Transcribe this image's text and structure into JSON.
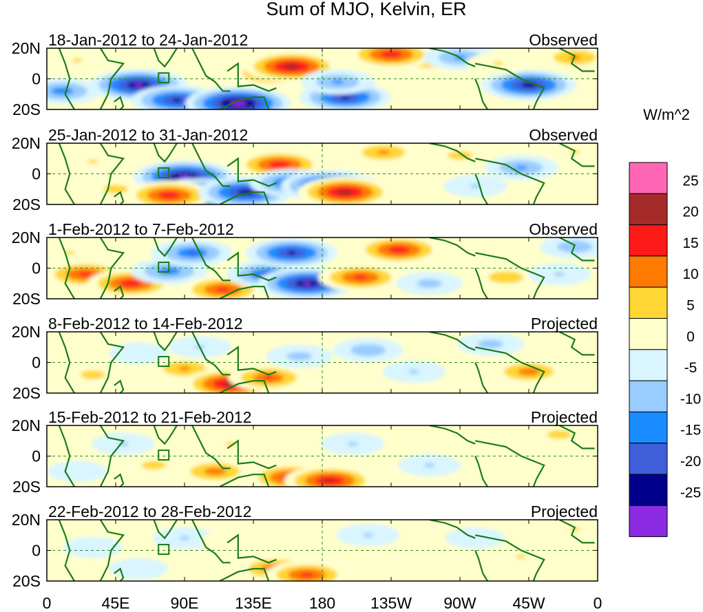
{
  "chart_data": {
    "type": "heatmap",
    "title": "Sum of MJO, Kelvin, ER",
    "colorbar": {
      "units": "W/m^2",
      "tick_labels": [
        "25",
        "20",
        "15",
        "10",
        "5",
        "0",
        "-5",
        "-10",
        "-15",
        "-20",
        "-25"
      ],
      "colors": [
        "#ff66b3",
        "#a52a2a",
        "#ff1a1a",
        "#ff7a00",
        "#ffd633",
        "#ffffcc",
        "#d9f5ff",
        "#99ccff",
        "#1a8cff",
        "#3f5fd9",
        "#00008b",
        "#8a2be2"
      ]
    },
    "x_ticks": [
      "0",
      "45E",
      "90E",
      "135E",
      "180",
      "135W",
      "90W",
      "45W",
      "0"
    ],
    "y_ticks": [
      "20N",
      "0",
      "20S"
    ],
    "xlim": [
      0,
      360
    ],
    "ylim": [
      -20,
      20
    ],
    "panels": [
      {
        "period": "18-Jan-2012 to 24-Jan-2012",
        "status": "Observed",
        "blobs": [
          [
            10,
            -8,
            -14
          ],
          [
            60,
            -4,
            -26
          ],
          [
            85,
            -14,
            -22
          ],
          [
            125,
            -16,
            -30
          ],
          [
            148,
            4,
            18
          ],
          [
            160,
            8,
            24
          ],
          [
            195,
            -12,
            -22
          ],
          [
            190,
            -2,
            -12
          ],
          [
            250,
            12,
            12
          ],
          [
            225,
            16,
            20
          ],
          [
            270,
            14,
            -12
          ],
          [
            315,
            -4,
            -24
          ],
          [
            345,
            14,
            12
          ],
          [
            20,
            12,
            6
          ],
          [
            295,
            10,
            6
          ]
        ]
      },
      {
        "period": "25-Jan-2012 to 31-Jan-2012",
        "status": "Observed",
        "blobs": [
          [
            30,
            8,
            6
          ],
          [
            45,
            -10,
            8
          ],
          [
            90,
            -2,
            -28
          ],
          [
            100,
            -14,
            -30
          ],
          [
            80,
            -14,
            20
          ],
          [
            130,
            -12,
            -24
          ],
          [
            152,
            6,
            20
          ],
          [
            160,
            -6,
            -18
          ],
          [
            185,
            -8,
            -26
          ],
          [
            195,
            -12,
            24
          ],
          [
            220,
            14,
            12
          ],
          [
            270,
            12,
            8
          ],
          [
            280,
            -8,
            -6
          ],
          [
            310,
            4,
            -12
          ],
          [
            345,
            14,
            6
          ]
        ]
      },
      {
        "period": "1-Feb-2012 to 7-Feb-2012",
        "status": "Observed",
        "blobs": [
          [
            25,
            -4,
            18
          ],
          [
            55,
            -10,
            20
          ],
          [
            80,
            -2,
            -14
          ],
          [
            95,
            10,
            -16
          ],
          [
            115,
            -14,
            18
          ],
          [
            145,
            -4,
            -18
          ],
          [
            160,
            10,
            -22
          ],
          [
            170,
            -10,
            -26
          ],
          [
            205,
            -6,
            18
          ],
          [
            230,
            12,
            20
          ],
          [
            250,
            -10,
            -8
          ],
          [
            300,
            -6,
            10
          ],
          [
            335,
            -4,
            -6
          ],
          [
            345,
            14,
            -10
          ],
          [
            15,
            10,
            6
          ]
        ]
      },
      {
        "period": "8-Feb-2012 to 14-Feb-2012",
        "status": "Projected",
        "blobs": [
          [
            30,
            -8,
            8
          ],
          [
            90,
            -4,
            12
          ],
          [
            120,
            -14,
            24
          ],
          [
            145,
            -10,
            16
          ],
          [
            100,
            10,
            -6
          ],
          [
            165,
            4,
            -8
          ],
          [
            210,
            8,
            -10
          ],
          [
            240,
            -6,
            -6
          ],
          [
            290,
            12,
            -8
          ],
          [
            315,
            -6,
            14
          ],
          [
            345,
            10,
            4
          ],
          [
            60,
            6,
            -4
          ]
        ]
      },
      {
        "period": "15-Feb-2012 to 21-Feb-2012",
        "status": "Projected",
        "blobs": [
          [
            70,
            -6,
            8
          ],
          [
            110,
            -10,
            14
          ],
          [
            160,
            -14,
            20
          ],
          [
            185,
            -16,
            22
          ],
          [
            120,
            8,
            6
          ],
          [
            50,
            8,
            -6
          ],
          [
            200,
            8,
            -6
          ],
          [
            250,
            -6,
            -6
          ],
          [
            300,
            8,
            4
          ],
          [
            335,
            14,
            8
          ],
          [
            20,
            -10,
            -4
          ]
        ]
      },
      {
        "period": "22-Feb-2012 to 28-Feb-2012",
        "status": "Projected",
        "blobs": [
          [
            60,
            -12,
            -4
          ],
          [
            90,
            8,
            -6
          ],
          [
            120,
            6,
            4
          ],
          [
            150,
            -12,
            16
          ],
          [
            170,
            -16,
            18
          ],
          [
            210,
            10,
            -6
          ],
          [
            240,
            -8,
            4
          ],
          [
            280,
            8,
            -4
          ],
          [
            310,
            -4,
            6
          ],
          [
            345,
            14,
            6
          ],
          [
            30,
            2,
            -4
          ]
        ]
      }
    ]
  }
}
